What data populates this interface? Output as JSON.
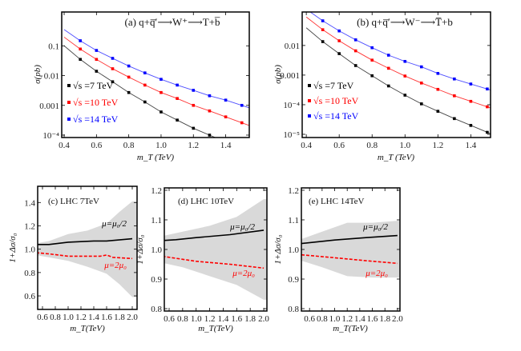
{
  "chart_data": [
    {
      "id": "a",
      "type": "scatter",
      "title": "(a)  q+q̅′⟶W⁺⟶T+b̅",
      "xlabel": "m_T (TeV)",
      "ylabel": "σ(pb)",
      "yscale": "log",
      "xlim": [
        0.385,
        1.546
      ],
      "ylim": [
        8.3e-05,
        1.37
      ],
      "xticks": [
        {
          "v": 0.4,
          "label": "0.4"
        },
        {
          "v": 0.6,
          "label": "0.6"
        },
        {
          "v": 0.8,
          "label": "0.8"
        },
        {
          "v": 1.0,
          "label": "1.0"
        },
        {
          "v": 1.2,
          "label": "1.2"
        },
        {
          "v": 1.4,
          "label": "1.4"
        }
      ],
      "yticks": [
        {
          "v": 0.1,
          "label": "0.1"
        },
        {
          "v": 0.01,
          "label": "0.01"
        },
        {
          "v": 0.001,
          "label": "0.001"
        },
        {
          "v": 0.0001,
          "label": "10⁻⁴"
        }
      ],
      "legend_placement": "left",
      "x": [
        0.5,
        0.6,
        0.7,
        0.8,
        0.9,
        1.0,
        1.1,
        1.2,
        1.3,
        1.4,
        1.5
      ],
      "series": [
        {
          "name": "√s =7  TeV",
          "color": "#000000",
          "line_color": "#444444",
          "values": [
            0.035,
            0.014,
            0.0062,
            0.0027,
            0.0013,
            0.0006,
            0.00032,
            0.00017,
            0.0001,
            null,
            null
          ]
        },
        {
          "name": "√s =10 TeV",
          "color": "#ff0000",
          "line_color": "#ff3333",
          "values": [
            0.078,
            0.035,
            0.017,
            0.0089,
            0.0048,
            0.0027,
            0.0017,
            0.001,
            0.00065,
            0.00041,
            0.00026
          ]
        },
        {
          "name": "√s =14  TeV",
          "color": "#0000ff",
          "line_color": "#4d4dff",
          "values": [
            0.148,
            0.07,
            0.038,
            0.021,
            0.0123,
            0.0075,
            0.0048,
            0.0032,
            0.0021,
            0.0015,
            0.001
          ]
        }
      ]
    },
    {
      "id": "b",
      "type": "scatter",
      "title": "(b)  q+q̅′⟶W⁻⟶T̅+b",
      "xlabel": "m_T (TeV)",
      "ylabel": "σ(pb)",
      "yscale": "log",
      "xlim": [
        0.375,
        1.52
      ],
      "ylim": [
        7.8e-06,
        0.135
      ],
      "xticks": [
        {
          "v": 0.4,
          "label": "0.4"
        },
        {
          "v": 0.6,
          "label": "0.6"
        },
        {
          "v": 0.8,
          "label": "0.8"
        },
        {
          "v": 1.0,
          "label": "1.0"
        },
        {
          "v": 1.2,
          "label": "1.2"
        },
        {
          "v": 1.4,
          "label": "1.4"
        }
      ],
      "yticks": [
        {
          "v": 0.01,
          "label": "0.01"
        },
        {
          "v": 0.001,
          "label": "0.001"
        },
        {
          "v": 0.0001,
          "label": "10⁻⁴"
        },
        {
          "v": 1e-05,
          "label": "10⁻⁵"
        }
      ],
      "legend_placement": "left",
      "x": [
        0.5,
        0.6,
        0.7,
        0.8,
        0.9,
        1.0,
        1.1,
        1.2,
        1.3,
        1.4,
        1.5
      ],
      "series": [
        {
          "name": "√s =7  TeV",
          "color": "#000000",
          "line_color": "#444444",
          "values": [
            0.0135,
            0.0053,
            0.0021,
            0.00095,
            0.00043,
            0.00021,
            0.000107,
            6e-05,
            3.4e-05,
            2e-05,
            1.17e-05
          ]
        },
        {
          "name": "√s =10 TeV",
          "color": "#ff0000",
          "line_color": "#ff3333",
          "values": [
            0.034,
            0.0144,
            0.0066,
            0.0032,
            0.0017,
            0.00093,
            0.00054,
            0.00033,
            0.0002,
            0.00013,
            8.5e-05
          ]
        },
        {
          "name": "√s =14  TeV",
          "color": "#0000ff",
          "line_color": "#4d4dff",
          "values": [
            0.068,
            0.031,
            0.0155,
            0.0084,
            0.0047,
            0.0029,
            0.0019,
            0.00114,
            0.00074,
            0.0005,
            0.00034
          ]
        }
      ]
    },
    {
      "id": "c",
      "type": "line",
      "title": "(c) LHC  7TeV",
      "xlabel": "m_T(TeV)",
      "ylabel": "1+Δσ/σ₀",
      "xlim": [
        0.525,
        2.075
      ],
      "ylim": [
        0.484,
        1.539
      ],
      "xticks": [
        {
          "v": 0.6,
          "label": "0.6"
        },
        {
          "v": 0.8,
          "label": "0.8"
        },
        {
          "v": 1.0,
          "label": "1.0"
        },
        {
          "v": 1.2,
          "label": "1.2"
        },
        {
          "v": 1.4,
          "label": "1.4"
        },
        {
          "v": 1.6,
          "label": "1.6"
        },
        {
          "v": 1.8,
          "label": "1.8"
        },
        {
          "v": 2.0,
          "label": "2.0"
        }
      ],
      "yticks": [
        {
          "v": 0.6,
          "label": "0.6"
        },
        {
          "v": 0.8,
          "label": "0.8"
        },
        {
          "v": 1.0,
          "label": "1.0"
        },
        {
          "v": 1.2,
          "label": "1.2"
        },
        {
          "v": 1.4,
          "label": "1.4"
        }
      ],
      "band": {
        "x": [
          0.5,
          0.7,
          1.0,
          1.3,
          1.6,
          1.8,
          2.0
        ],
        "upper": [
          1.05,
          1.07,
          1.13,
          1.16,
          1.22,
          1.32,
          1.41
        ],
        "lower": [
          0.95,
          0.93,
          0.9,
          0.85,
          0.79,
          0.7,
          0.59
        ],
        "color": "#d9d9d9"
      },
      "series": [
        {
          "name": "μ=μ₀/2",
          "color": "#000000",
          "style": "solid",
          "x": [
            0.5,
            0.7,
            1.0,
            1.4,
            1.6,
            2.0
          ],
          "values": [
            1.04,
            1.04,
            1.06,
            1.07,
            1.07,
            1.09
          ]
        },
        {
          "name": "μ=2μ₀",
          "color": "#ff0000",
          "style": "dashed",
          "x": [
            0.5,
            0.7,
            1.0,
            1.5,
            1.6,
            1.7,
            2.0
          ],
          "values": [
            0.97,
            0.96,
            0.94,
            0.94,
            0.95,
            0.93,
            0.92
          ]
        }
      ]
    },
    {
      "id": "d",
      "type": "line",
      "title": "(d) LHC 10TeV",
      "xlabel": "m_T(TeV)",
      "ylabel": "1+Δσ/σ₀",
      "xlim": [
        0.529,
        2.047
      ],
      "ylim": [
        0.792,
        1.208
      ],
      "xticks": [
        {
          "v": 0.6,
          "label": "0.6"
        },
        {
          "v": 0.8,
          "label": "0.8"
        },
        {
          "v": 1.0,
          "label": "1.0"
        },
        {
          "v": 1.2,
          "label": "1.2"
        },
        {
          "v": 1.4,
          "label": "1.4"
        },
        {
          "v": 1.6,
          "label": "1.6"
        },
        {
          "v": 1.8,
          "label": "1.8"
        },
        {
          "v": 2.0,
          "label": "2.0"
        }
      ],
      "yticks": [
        {
          "v": 0.8,
          "label": "0.8"
        },
        {
          "v": 0.9,
          "label": "0.9"
        },
        {
          "v": 1.0,
          "label": "1.0"
        },
        {
          "v": 1.1,
          "label": "1.1"
        },
        {
          "v": 1.2,
          "label": "1.2"
        }
      ],
      "band": {
        "x": [
          0.5,
          0.8,
          1.2,
          1.6,
          2.0
        ],
        "upper": [
          1.045,
          1.06,
          1.08,
          1.11,
          1.17
        ],
        "lower": [
          0.955,
          0.94,
          0.91,
          0.88,
          0.83
        ],
        "color": "#d9d9d9"
      },
      "series": [
        {
          "name": "μ=μ₀/2",
          "color": "#000000",
          "style": "solid",
          "x": [
            0.5,
            0.7,
            1.0,
            1.5,
            2.0
          ],
          "values": [
            1.03,
            1.033,
            1.04,
            1.05,
            1.065
          ]
        },
        {
          "name": "μ=2μ₀",
          "color": "#ff0000",
          "style": "dashed",
          "x": [
            0.5,
            1.0,
            1.5,
            2.0
          ],
          "values": [
            0.977,
            0.96,
            0.95,
            0.937
          ]
        }
      ]
    },
    {
      "id": "e",
      "type": "line",
      "title": "(e) LHC 14TeV",
      "xlabel": "m_T(TeV)",
      "ylabel": "1+Δσ/σ₀",
      "xlim": [
        0.47,
        2.04
      ],
      "ylim": [
        0.792,
        1.208
      ],
      "xticks": [
        {
          "v": 0.6,
          "label": "0.6"
        },
        {
          "v": 0.8,
          "label": "0.8"
        },
        {
          "v": 1.0,
          "label": "1.0"
        },
        {
          "v": 1.2,
          "label": "1.2"
        },
        {
          "v": 1.4,
          "label": "1.4"
        },
        {
          "v": 1.6,
          "label": "1.6"
        },
        {
          "v": 1.8,
          "label": "1.8"
        },
        {
          "v": 2.0,
          "label": "2.0"
        }
      ],
      "yticks": [
        {
          "v": 0.8,
          "label": "0.8"
        },
        {
          "v": 0.9,
          "label": "0.9"
        },
        {
          "v": 1.0,
          "label": "1.0"
        },
        {
          "v": 1.1,
          "label": "1.1"
        },
        {
          "v": 1.2,
          "label": "1.2"
        }
      ],
      "band": {
        "x": [
          0.47,
          0.8,
          1.2,
          1.6,
          2.0
        ],
        "upper": [
          1.035,
          1.06,
          1.09,
          1.09,
          1.097
        ],
        "lower": [
          0.962,
          0.94,
          0.91,
          0.905,
          0.905
        ],
        "color": "#d9d9d9"
      },
      "series": [
        {
          "name": "μ=μ₀/2",
          "color": "#000000",
          "style": "solid",
          "x": [
            0.47,
            1.0,
            1.5,
            2.0
          ],
          "values": [
            1.02,
            1.032,
            1.04,
            1.047
          ]
        },
        {
          "name": "μ=2μ₀",
          "color": "#ff0000",
          "style": "dashed",
          "x": [
            0.47,
            1.0,
            1.5,
            2.0
          ],
          "values": [
            0.982,
            0.972,
            0.962,
            0.953
          ]
        }
      ]
    }
  ]
}
